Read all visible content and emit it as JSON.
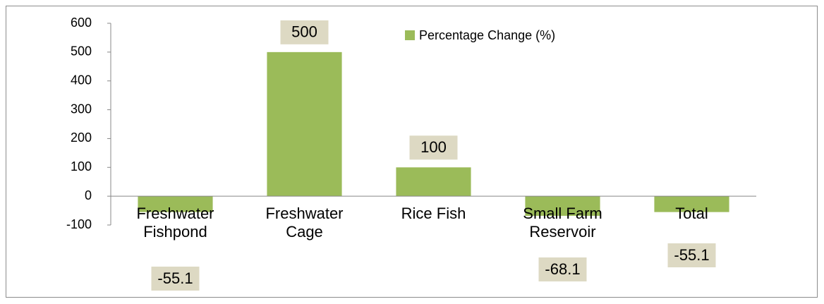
{
  "chart_data": {
    "type": "bar",
    "categories": [
      "Freshwater Fishpond",
      "Freshwater Cage",
      "Rice Fish",
      "Small Farm Reservoir",
      "Total"
    ],
    "series": [
      {
        "name": "Percentage Change (%)",
        "color": "#9bbb59",
        "values": [
          -55.1,
          500,
          100,
          -68.1,
          -55.1
        ]
      }
    ],
    "ylim": [
      -100,
      600
    ],
    "yticks": [
      -100,
      0,
      100,
      200,
      300,
      400,
      500,
      600
    ],
    "legend": "top"
  }
}
